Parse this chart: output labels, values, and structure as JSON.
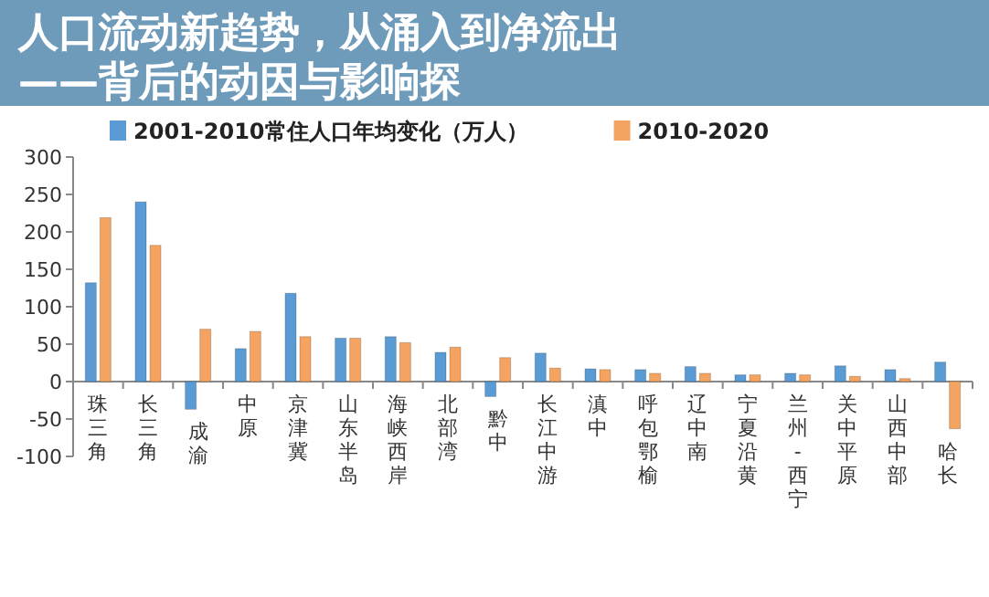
{
  "chart_data": {
    "type": "bar",
    "title": "人口流动新趋势，从涌入到净流出——背后的动因与影响探",
    "categories": [
      "珠三角",
      "长三角",
      "成渝",
      "中原",
      "京津冀",
      "山东半岛",
      "海峡西岸",
      "北部湾",
      "黔中",
      "长江中游",
      "滇中",
      "呼包鄂榆",
      "辽中南",
      "宁夏沿黄",
      "兰州-西宁",
      "关中平原",
      "山西中部",
      "哈长"
    ],
    "series": [
      {
        "name": "2001-2010常住人口年均变化（万人）",
        "color": "#5b9bd5",
        "values": [
          132,
          240,
          -37,
          44,
          118,
          58,
          60,
          39,
          -20,
          38,
          17,
          16,
          20,
          9,
          11,
          21,
          16,
          26
        ]
      },
      {
        "name": "2010-2020",
        "color": "#f4a460",
        "values": [
          219,
          182,
          70,
          67,
          60,
          58,
          52,
          46,
          32,
          18,
          16,
          11,
          11,
          9,
          9,
          7,
          4,
          -63
        ]
      }
    ],
    "ylim": [
      -100,
      300
    ],
    "yticks": [
      -100,
      -50,
      0,
      50,
      100,
      150,
      200,
      250,
      300
    ],
    "grid": false,
    "legend": "top"
  }
}
